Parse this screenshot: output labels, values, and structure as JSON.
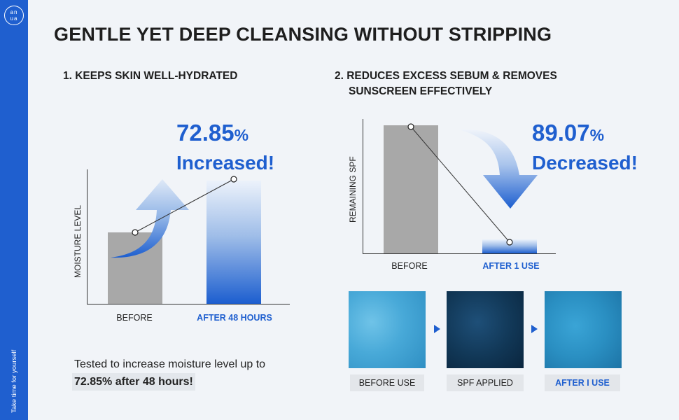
{
  "brand": {
    "logo_lines": [
      "an",
      "ua"
    ],
    "tagline": "Take time for yourself",
    "accent_color": "#1f5fcf"
  },
  "headline": "GENTLE YET DEEP CLEANSING WITHOUT STRIPPING",
  "section1": {
    "title": "1. KEEPS SKIN WELL-HYDRATED",
    "stat_value": "72.85",
    "stat_unit": "%",
    "stat_word": "Increased!",
    "description_line1": "Tested to increase moisture level up to",
    "description_line2": "72.85% after 48 hours!",
    "chart_data": {
      "type": "bar",
      "ylabel": "MOISTURE LEVEL",
      "categories": [
        "BEFORE",
        "AFTER 48 HOURS"
      ],
      "values": [
        100,
        172.85
      ],
      "change": "+72.85%"
    }
  },
  "section2": {
    "title_line1": "2. REDUCES EXCESS SEBUM & REMOVES",
    "title_line2": "SUNSCREEN EFFECTIVELY",
    "stat_value": "89.07",
    "stat_unit": "%",
    "stat_word": "Decreased!",
    "chart_data": {
      "type": "bar",
      "ylabel": "REMAINING SPF",
      "categories": [
        "BEFORE",
        "AFTER 1 USE"
      ],
      "values": [
        100,
        10.93
      ],
      "change": "-89.07%"
    },
    "swatches": [
      {
        "label": "BEFORE USE",
        "color": "#48a9d8"
      },
      {
        "label": "SPF APPLIED",
        "color": "#113756"
      },
      {
        "label": "AFTER I USE",
        "color": "#2a8fc2"
      }
    ]
  }
}
